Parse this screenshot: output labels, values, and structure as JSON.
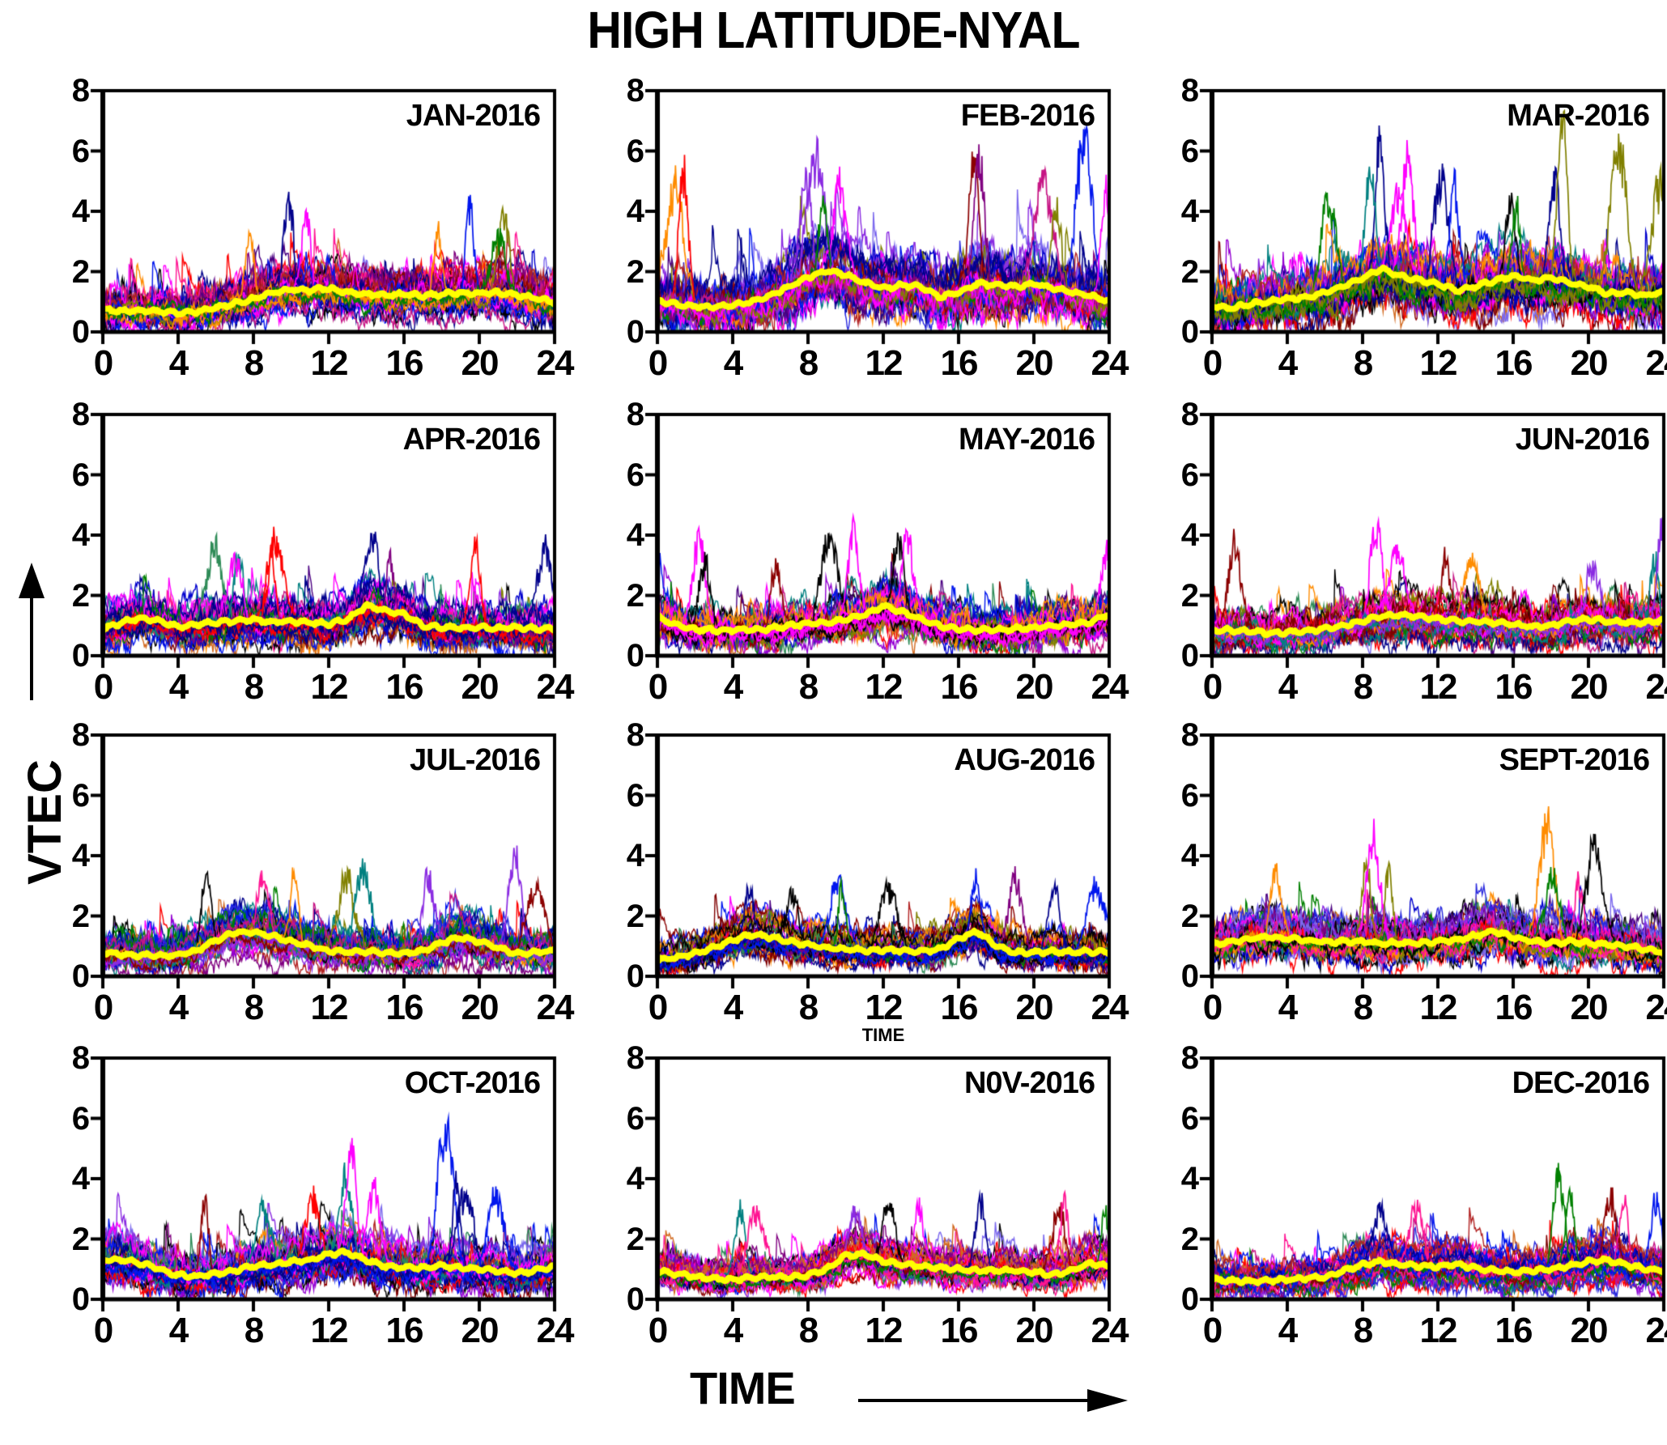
{
  "title": "HIGH LATITUDE-NYAL",
  "y_axis_label": "VTEC",
  "x_axis_label": "TIME",
  "mini_time_label": "TIME",
  "axes": {
    "xlim": [
      0,
      24
    ],
    "ylim": [
      0,
      8
    ],
    "x_ticks": [
      0,
      4,
      8,
      12,
      16,
      20,
      24
    ],
    "y_ticks": [
      8,
      6,
      4,
      2,
      0
    ],
    "grid": "off",
    "tick_style": "major-only, outward, bold"
  },
  "colors": {
    "background": "#ffffff",
    "axis": "#000000",
    "text": "#000000",
    "mean_line": "#ffff00",
    "palette": [
      "#0016ee",
      "#0016ee",
      "#0000cd",
      "#00008b",
      "#00008b",
      "#2929de",
      "#ff0000",
      "#ff0000",
      "#ff0000",
      "#8b0000",
      "#b22222",
      "#ff00ff",
      "#ff00ff",
      "#ff1493",
      "#c71585",
      "#800080",
      "#8a2be2",
      "#8a2be2",
      "#7b68ee",
      "#9400d3",
      "#ff8c00",
      "#ff8c00",
      "#d2691e",
      "#008000",
      "#2e8b57",
      "#008080",
      "#808000",
      "#000000",
      "#000000",
      "#4b0082",
      "#800000"
    ]
  },
  "chart_data": {
    "type": "line",
    "description": "12 monthly panels of diurnal VTEC; each panel overlays one noisy curve per day of month plus a thick yellow monthly-mean curve",
    "x_hours": [
      0,
      1,
      2,
      3,
      4,
      5,
      6,
      7,
      8,
      9,
      10,
      11,
      12,
      13,
      14,
      15,
      16,
      17,
      18,
      19,
      20,
      21,
      22,
      23,
      24
    ],
    "panels": [
      {
        "label": "JAN-2016",
        "n_curves": 31,
        "noise_spread": 1.0,
        "envelope_max": 4.2,
        "mean_vtec": [
          0.75,
          0.7,
          0.7,
          0.68,
          0.62,
          0.66,
          0.8,
          0.95,
          1.1,
          1.3,
          1.42,
          1.38,
          1.45,
          1.32,
          1.25,
          1.22,
          1.25,
          1.2,
          1.25,
          1.3,
          1.28,
          1.3,
          1.22,
          1.12,
          1.0
        ],
        "peaks": [
          {
            "t": 9.9,
            "v": 4.2,
            "color": "#00008b"
          },
          {
            "t": 10.8,
            "v": 3.9,
            "color": "#ff00ff"
          },
          {
            "t": 19.5,
            "v": 4.2,
            "color": "#0016ee"
          },
          {
            "t": 21.3,
            "v": 4.0,
            "color": "#808000"
          },
          {
            "t": 17.8,
            "v": 3.4,
            "color": "#ff8c00"
          },
          {
            "t": 7.8,
            "v": 3.0,
            "color": "#ff8c00"
          },
          {
            "t": 21.0,
            "v": 3.2,
            "color": "#008000"
          }
        ]
      },
      {
        "label": "FEB-2016",
        "n_curves": 29,
        "noise_spread": 1.35,
        "envelope_max": 6.3,
        "mean_vtec": [
          1.05,
          0.92,
          0.85,
          0.82,
          0.9,
          1.0,
          1.2,
          1.5,
          1.8,
          2.05,
          1.9,
          1.62,
          1.45,
          1.55,
          1.5,
          1.15,
          1.32,
          1.6,
          1.55,
          1.5,
          1.6,
          1.45,
          1.32,
          1.2,
          1.02
        ],
        "peaks": [
          {
            "t": 0.9,
            "v": 4.55,
            "color": "#ff8c00"
          },
          {
            "t": 1.4,
            "v": 4.85,
            "color": "#ff0000"
          },
          {
            "t": 7.9,
            "v": 5.0,
            "color": "#8a2be2"
          },
          {
            "t": 8.4,
            "v": 5.75,
            "color": "#8a2be2"
          },
          {
            "t": 9.7,
            "v": 4.8,
            "color": "#ff00ff"
          },
          {
            "t": 8.8,
            "v": 4.1,
            "color": "#008000"
          },
          {
            "t": 16.8,
            "v": 5.6,
            "color": "#8b0000"
          },
          {
            "t": 17.1,
            "v": 5.85,
            "color": "#800080"
          },
          {
            "t": 22.7,
            "v": 6.3,
            "color": "#0016ee"
          },
          {
            "t": 20.5,
            "v": 4.8,
            "color": "#c71585"
          },
          {
            "t": 21.2,
            "v": 4.1,
            "color": "#808000"
          },
          {
            "t": 23.9,
            "v": 4.8,
            "color": "#ff00ff"
          }
        ]
      },
      {
        "label": "MAR-2016",
        "n_curves": 31,
        "noise_spread": 1.35,
        "envelope_max": 6.9,
        "mean_vtec": [
          0.85,
          0.78,
          0.92,
          1.0,
          1.1,
          1.15,
          1.3,
          1.52,
          1.8,
          2.1,
          1.85,
          1.7,
          1.6,
          1.38,
          1.52,
          1.7,
          1.85,
          1.72,
          1.8,
          1.62,
          1.5,
          1.28,
          1.3,
          1.2,
          1.32
        ],
        "peaks": [
          {
            "t": 6.2,
            "v": 4.8,
            "color": "#008000"
          },
          {
            "t": 8.9,
            "v": 6.2,
            "color": "#00008b"
          },
          {
            "t": 8.4,
            "v": 5.3,
            "color": "#008080"
          },
          {
            "t": 9.9,
            "v": 4.9,
            "color": "#ff00ff"
          },
          {
            "t": 10.4,
            "v": 5.5,
            "color": "#ff00ff"
          },
          {
            "t": 12.1,
            "v": 4.9,
            "color": "#00008b"
          },
          {
            "t": 12.9,
            "v": 4.6,
            "color": "#0016ee"
          },
          {
            "t": 15.8,
            "v": 4.4,
            "color": "#000000"
          },
          {
            "t": 18.2,
            "v": 4.7,
            "color": "#00008b"
          },
          {
            "t": 18.6,
            "v": 6.8,
            "color": "#808000"
          },
          {
            "t": 21.6,
            "v": 6.2,
            "color": "#808000"
          },
          {
            "t": 23.9,
            "v": 5.1,
            "color": "#808000"
          },
          {
            "t": 16.2,
            "v": 4.3,
            "color": "#008000"
          }
        ]
      },
      {
        "label": "APR-2016",
        "n_curves": 30,
        "noise_spread": 1.0,
        "envelope_max": 3.9,
        "mean_vtec": [
          0.88,
          1.1,
          1.25,
          1.15,
          0.95,
          1.05,
          1.1,
          1.15,
          1.2,
          1.12,
          1.15,
          1.1,
          1.05,
          1.2,
          1.65,
          1.5,
          1.38,
          1.0,
          0.95,
          0.92,
          0.95,
          0.9,
          0.95,
          0.9,
          0.9
        ],
        "peaks": [
          {
            "t": 5.9,
            "v": 3.3,
            "color": "#2e8b57"
          },
          {
            "t": 7.2,
            "v": 3.4,
            "color": "#008080"
          },
          {
            "t": 7.0,
            "v": 3.0,
            "color": "#ff00ff"
          },
          {
            "t": 8.9,
            "v": 3.8,
            "color": "#ff0000"
          },
          {
            "t": 9.2,
            "v": 3.6,
            "color": "#ff0000"
          },
          {
            "t": 14.3,
            "v": 3.85,
            "color": "#00008b"
          },
          {
            "t": 15.3,
            "v": 3.5,
            "color": "#800080"
          },
          {
            "t": 19.8,
            "v": 3.4,
            "color": "#ff0000"
          },
          {
            "t": 23.5,
            "v": 3.4,
            "color": "#00008b"
          }
        ]
      },
      {
        "label": "MAY-2016",
        "n_curves": 31,
        "noise_spread": 1.0,
        "envelope_max": 4.2,
        "mean_vtec": [
          1.3,
          1.0,
          0.88,
          0.85,
          0.85,
          0.87,
          0.9,
          1.0,
          1.05,
          1.1,
          1.2,
          1.35,
          1.65,
          1.45,
          1.2,
          1.0,
          0.88,
          0.85,
          0.85,
          0.9,
          0.92,
          1.0,
          1.05,
          1.1,
          1.4
        ],
        "peaks": [
          {
            "t": 2.2,
            "v": 3.9,
            "color": "#ff00ff"
          },
          {
            "t": 2.5,
            "v": 3.1,
            "color": "#000000"
          },
          {
            "t": 6.3,
            "v": 2.9,
            "color": "#8b0000"
          },
          {
            "t": 9.1,
            "v": 3.6,
            "color": "#000000"
          },
          {
            "t": 10.4,
            "v": 4.15,
            "color": "#ff00ff"
          },
          {
            "t": 12.8,
            "v": 3.8,
            "color": "#000000"
          },
          {
            "t": 13.3,
            "v": 3.9,
            "color": "#ff00ff"
          },
          {
            "t": 23.9,
            "v": 3.5,
            "color": "#ff00ff"
          }
        ]
      },
      {
        "label": "JUN-2016",
        "n_curves": 30,
        "noise_spread": 0.95,
        "envelope_max": 4.2,
        "mean_vtec": [
          0.85,
          0.85,
          0.8,
          0.75,
          0.78,
          0.82,
          0.9,
          1.0,
          1.15,
          1.3,
          1.35,
          1.3,
          1.22,
          1.15,
          1.15,
          1.1,
          1.05,
          0.95,
          1.0,
          1.15,
          1.2,
          1.15,
          1.1,
          1.1,
          1.2
        ],
        "peaks": [
          {
            "t": 1.2,
            "v": 3.4,
            "color": "#8b0000"
          },
          {
            "t": 8.7,
            "v": 4.0,
            "color": "#ff00ff"
          },
          {
            "t": 9.8,
            "v": 3.3,
            "color": "#ff00ff"
          },
          {
            "t": 12.4,
            "v": 3.0,
            "color": "#8b0000"
          },
          {
            "t": 13.8,
            "v": 3.1,
            "color": "#ff8c00"
          },
          {
            "t": 20.2,
            "v": 3.3,
            "color": "#8a2be2"
          },
          {
            "t": 23.5,
            "v": 3.3,
            "color": "#008080"
          },
          {
            "t": 23.9,
            "v": 4.2,
            "color": "#8a2be2"
          }
        ]
      },
      {
        "label": "JUL-2016",
        "n_curves": 31,
        "noise_spread": 0.9,
        "envelope_max": 4.3,
        "mean_vtec": [
          0.8,
          0.72,
          0.7,
          0.68,
          0.72,
          0.85,
          1.2,
          1.45,
          1.45,
          1.35,
          1.15,
          1.0,
          0.85,
          0.8,
          0.82,
          0.78,
          0.75,
          0.85,
          1.1,
          1.3,
          1.15,
          0.95,
          0.75,
          0.8,
          0.85
        ],
        "peaks": [
          {
            "t": 5.5,
            "v": 3.4,
            "color": "#000000"
          },
          {
            "t": 8.5,
            "v": 3.2,
            "color": "#ff1493"
          },
          {
            "t": 10.2,
            "v": 3.35,
            "color": "#ff8c00"
          },
          {
            "t": 12.9,
            "v": 3.2,
            "color": "#808000"
          },
          {
            "t": 13.8,
            "v": 3.3,
            "color": "#008080"
          },
          {
            "t": 17.3,
            "v": 3.4,
            "color": "#8a2be2"
          },
          {
            "t": 21.9,
            "v": 4.2,
            "color": "#8a2be2"
          },
          {
            "t": 23.0,
            "v": 2.95,
            "color": "#8b0000"
          }
        ]
      },
      {
        "label": "AUG-2016",
        "n_curves": 31,
        "noise_spread": 0.8,
        "envelope_max": 3.4,
        "mean_vtec": [
          0.55,
          0.62,
          0.75,
          0.95,
          1.2,
          1.38,
          1.3,
          1.15,
          1.05,
          0.95,
          0.9,
          0.85,
          0.88,
          0.85,
          0.82,
          0.9,
          1.25,
          1.5,
          1.0,
          0.78,
          0.8,
          0.82,
          0.8,
          0.82,
          0.8
        ],
        "peaks": [
          {
            "t": 4.9,
            "v": 2.95,
            "color": "#00008b"
          },
          {
            "t": 7.1,
            "v": 2.55,
            "color": "#000000"
          },
          {
            "t": 9.6,
            "v": 3.1,
            "color": "#0016ee"
          },
          {
            "t": 9.8,
            "v": 3.05,
            "color": "#008000"
          },
          {
            "t": 12.3,
            "v": 2.85,
            "color": "#000000"
          },
          {
            "t": 16.9,
            "v": 3.35,
            "color": "#0016ee"
          },
          {
            "t": 19.0,
            "v": 3.2,
            "color": "#800080"
          },
          {
            "t": 21.1,
            "v": 2.8,
            "color": "#00008b"
          },
          {
            "t": 23.3,
            "v": 3.0,
            "color": "#0016ee"
          }
        ]
      },
      {
        "label": "SEPT-2016",
        "n_curves": 30,
        "noise_spread": 1.0,
        "envelope_max": 5.2,
        "mean_vtec": [
          1.05,
          1.15,
          1.25,
          1.3,
          1.25,
          1.2,
          1.15,
          1.15,
          1.15,
          1.1,
          1.1,
          1.1,
          1.15,
          1.2,
          1.35,
          1.5,
          1.3,
          1.15,
          1.1,
          1.15,
          1.1,
          1.05,
          1.0,
          0.9,
          0.8
        ],
        "peaks": [
          {
            "t": 3.4,
            "v": 3.2,
            "color": "#ff8c00"
          },
          {
            "t": 8.2,
            "v": 3.8,
            "color": "#808000"
          },
          {
            "t": 8.6,
            "v": 4.5,
            "color": "#ff00ff"
          },
          {
            "t": 9.4,
            "v": 3.5,
            "color": "#808000"
          },
          {
            "t": 17.8,
            "v": 5.2,
            "color": "#ff8c00"
          },
          {
            "t": 18.1,
            "v": 3.4,
            "color": "#008000"
          },
          {
            "t": 19.5,
            "v": 3.3,
            "color": "#ff1493"
          },
          {
            "t": 20.3,
            "v": 4.1,
            "color": "#000000"
          }
        ]
      },
      {
        "label": "OCT-2016",
        "n_curves": 31,
        "noise_spread": 0.95,
        "envelope_max": 5.8,
        "mean_vtec": [
          1.35,
          1.3,
          1.2,
          1.0,
          0.8,
          0.75,
          0.85,
          0.95,
          1.1,
          1.15,
          1.25,
          1.3,
          1.5,
          1.55,
          1.3,
          1.1,
          1.05,
          1.05,
          1.1,
          1.05,
          1.0,
          0.95,
          0.85,
          0.95,
          1.1
        ],
        "peaks": [
          {
            "t": 5.4,
            "v": 3.1,
            "color": "#8b0000"
          },
          {
            "t": 8.5,
            "v": 2.9,
            "color": "#008080"
          },
          {
            "t": 11.1,
            "v": 3.4,
            "color": "#ff0000"
          },
          {
            "t": 12.9,
            "v": 3.85,
            "color": "#008080"
          },
          {
            "t": 13.2,
            "v": 4.65,
            "color": "#ff00ff"
          },
          {
            "t": 14.4,
            "v": 3.5,
            "color": "#ff00ff"
          },
          {
            "t": 18.2,
            "v": 5.75,
            "color": "#0016ee"
          },
          {
            "t": 18.8,
            "v": 3.8,
            "color": "#00008b"
          },
          {
            "t": 19.2,
            "v": 3.6,
            "color": "#00008b"
          },
          {
            "t": 20.9,
            "v": 3.1,
            "color": "#0016ee"
          }
        ]
      },
      {
        "label": "N0V-2016",
        "n_curves": 30,
        "noise_spread": 0.78,
        "envelope_max": 3.2,
        "mean_vtec": [
          0.95,
          0.85,
          0.75,
          0.68,
          0.65,
          0.72,
          0.75,
          0.75,
          0.8,
          1.0,
          1.45,
          1.5,
          1.25,
          1.15,
          1.1,
          1.05,
          1.0,
          0.95,
          0.95,
          0.95,
          0.9,
          0.8,
          0.95,
          1.2,
          1.1
        ],
        "peaks": [
          {
            "t": 4.4,
            "v": 2.9,
            "color": "#008080"
          },
          {
            "t": 5.2,
            "v": 2.9,
            "color": "#ff1493"
          },
          {
            "t": 10.5,
            "v": 2.95,
            "color": "#8a2be2"
          },
          {
            "t": 12.3,
            "v": 3.0,
            "color": "#000000"
          },
          {
            "t": 13.9,
            "v": 2.95,
            "color": "#ff00ff"
          },
          {
            "t": 17.2,
            "v": 3.05,
            "color": "#00008b"
          },
          {
            "t": 21.3,
            "v": 3.0,
            "color": "#8b0000"
          },
          {
            "t": 21.6,
            "v": 3.15,
            "color": "#ff1493"
          },
          {
            "t": 23.8,
            "v": 2.95,
            "color": "#008000"
          }
        ]
      },
      {
        "label": "DEC-2016",
        "n_curves": 31,
        "noise_spread": 0.82,
        "envelope_max": 4.1,
        "mean_vtec": [
          0.65,
          0.62,
          0.6,
          0.62,
          0.65,
          0.7,
          0.75,
          0.95,
          1.15,
          1.25,
          1.15,
          1.1,
          1.1,
          1.15,
          1.05,
          0.95,
          0.9,
          0.95,
          1.0,
          1.1,
          1.25,
          1.3,
          1.15,
          1.0,
          0.95
        ],
        "peaks": [
          {
            "t": 8.9,
            "v": 2.9,
            "color": "#00008b"
          },
          {
            "t": 10.9,
            "v": 3.0,
            "color": "#ff1493"
          },
          {
            "t": 18.4,
            "v": 4.1,
            "color": "#008000"
          },
          {
            "t": 19.0,
            "v": 3.5,
            "color": "#008000"
          },
          {
            "t": 21.2,
            "v": 3.6,
            "color": "#8b0000"
          },
          {
            "t": 21.9,
            "v": 3.3,
            "color": "#ff1493"
          },
          {
            "t": 23.6,
            "v": 3.4,
            "color": "#0016ee"
          }
        ]
      }
    ]
  }
}
